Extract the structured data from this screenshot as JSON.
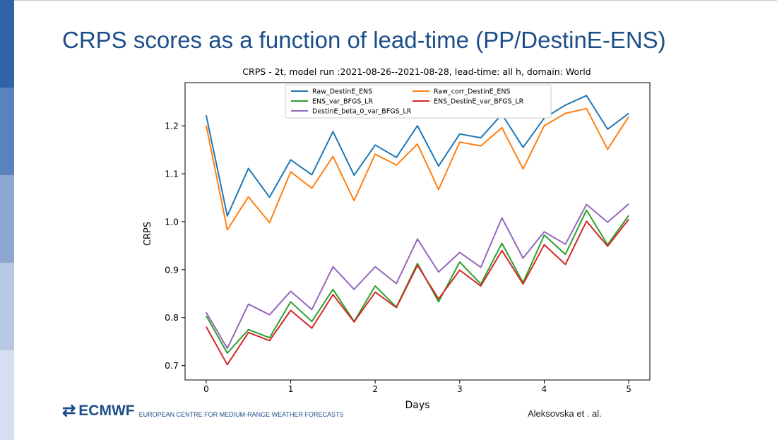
{
  "slide": {
    "title": "CRPS scores as a function of lead-time (PP/DestinE-ENS)",
    "author": "Aleksovska et . al.",
    "logo_text": "ECMWF",
    "logo_subtitle": "EUROPEAN CENTRE FOR MEDIUM-RANGE WEATHER FORECASTS",
    "logo_icon": "ecmwf-logo-icon",
    "sidebar_colors": [
      "#2f65a6",
      "#5a82bd",
      "#8ea7d1",
      "#b8c7e3",
      "#d6dff0"
    ]
  },
  "chart_data": {
    "type": "line",
    "title": "CRPS - 2t, model run :2021-08-26--2021-08-28, lead-time: all h, domain: World",
    "xlabel": "Days",
    "ylabel": "CRPS",
    "xlim": [
      -0.25,
      5.25
    ],
    "ylim": [
      0.67,
      1.29
    ],
    "xticks": [
      0,
      1,
      2,
      3,
      4,
      5
    ],
    "yticks": [
      0.7,
      0.8,
      0.9,
      1.0,
      1.1,
      1.2
    ],
    "yticklabels": [
      "0.7",
      "0.8",
      "0.9",
      "1.0",
      "1.1",
      "1.2"
    ],
    "grid": false,
    "legend_position": "top-center",
    "x": [
      0,
      0.25,
      0.5,
      0.75,
      1.0,
      1.25,
      1.5,
      1.75,
      2.0,
      2.25,
      2.5,
      2.75,
      3.0,
      3.25,
      3.5,
      3.75,
      4.0,
      4.25,
      4.5,
      4.75,
      5.0
    ],
    "series": [
      {
        "name": "Raw_DestinE_ENS",
        "color": "#1f77b4",
        "values": [
          1.222,
          1.012,
          1.111,
          1.051,
          1.129,
          1.098,
          1.188,
          1.097,
          1.16,
          1.134,
          1.2,
          1.116,
          1.183,
          1.175,
          1.224,
          1.155,
          1.216,
          1.243,
          1.263,
          1.193,
          1.226
        ]
      },
      {
        "name": "Raw_corr_DestinE_ENS",
        "color": "#ff7f0e",
        "values": [
          1.201,
          0.983,
          1.052,
          0.998,
          1.104,
          1.07,
          1.136,
          1.044,
          1.141,
          1.118,
          1.162,
          1.067,
          1.166,
          1.158,
          1.196,
          1.11,
          1.2,
          1.226,
          1.236,
          1.151,
          1.219
        ]
      },
      {
        "name": "ENS_var_BFGS_LR",
        "color": "#2ca02c",
        "values": [
          0.804,
          0.726,
          0.775,
          0.758,
          0.833,
          0.792,
          0.859,
          0.792,
          0.866,
          0.822,
          0.913,
          0.833,
          0.916,
          0.87,
          0.955,
          0.873,
          0.972,
          0.932,
          1.024,
          0.952,
          1.013
        ]
      },
      {
        "name": "ENS_DestinE_var_BFGS_LR",
        "color": "#d62728",
        "values": [
          0.781,
          0.702,
          0.769,
          0.752,
          0.815,
          0.778,
          0.848,
          0.791,
          0.853,
          0.821,
          0.909,
          0.839,
          0.899,
          0.866,
          0.94,
          0.87,
          0.952,
          0.911,
          1.001,
          0.949,
          1.005
        ]
      },
      {
        "name": "DestinE_beta_0_var_BFGS_LR",
        "color": "#9467bd",
        "values": [
          0.811,
          0.736,
          0.828,
          0.806,
          0.855,
          0.817,
          0.906,
          0.859,
          0.906,
          0.871,
          0.964,
          0.895,
          0.936,
          0.905,
          1.008,
          0.924,
          0.979,
          0.953,
          1.036,
          0.999,
          1.037
        ]
      }
    ]
  }
}
